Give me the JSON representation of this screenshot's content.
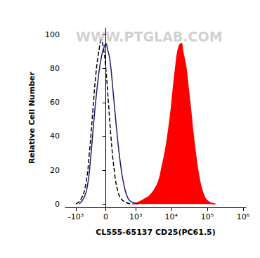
{
  "chart_data": {
    "type": "line",
    "x_label": "CL555-65137 CD25(PC61.5)",
    "y_label": "Relative Cell Number",
    "annotations": [
      "WWW.PTGLAB.COM"
    ],
    "xlim": [
      -2000,
      1200000
    ],
    "xticks": [
      {
        "value": -1000,
        "label": "-10³"
      },
      0,
      {
        "value": 1000,
        "label": "10³"
      },
      {
        "value": 10000,
        "label": "10⁴"
      },
      {
        "value": 100000,
        "label": "10⁵"
      },
      {
        "value": 1000000,
        "label": "10⁶"
      }
    ],
    "ylim": [
      -2,
      104
    ],
    "yticks": [
      0,
      20,
      40,
      60,
      80,
      100
    ],
    "grid": false,
    "series": [
      {
        "type": "line",
        "color": "#000000",
        "line_style": "dashed",
        "x": [
          -1000,
          -700,
          -500,
          -380,
          -280,
          -200,
          -130,
          -90,
          -50,
          0,
          50,
          100,
          170,
          250,
          350,
          500,
          700
        ],
        "values": [
          0,
          3,
          12,
          30,
          55,
          78,
          92,
          97,
          93,
          80,
          60,
          40,
          20,
          8,
          3,
          1,
          0
        ]
      },
      {
        "type": "line",
        "color": "#1a1a6e",
        "line_style": "solid",
        "x": [
          -800,
          -600,
          -450,
          -350,
          -250,
          -150,
          -80,
          -30,
          0,
          30,
          80,
          150,
          250,
          350,
          450,
          600,
          800,
          1200
        ],
        "values": [
          0,
          3,
          10,
          25,
          50,
          75,
          88,
          93,
          95,
          92,
          85,
          65,
          38,
          20,
          10,
          3,
          1,
          0
        ]
      },
      {
        "type": "area",
        "color": "#ff0000",
        "line_style": "solid",
        "x": [
          800,
          1200,
          1800,
          2500,
          3500,
          4500,
          5500,
          7000,
          8500,
          10000,
          11500,
          13000,
          15000,
          17000,
          19000,
          21000,
          23000,
          26000,
          30000,
          35000,
          40000,
          48000,
          58000,
          70000,
          85000,
          100000,
          130000,
          170000
        ],
        "values": [
          0,
          1,
          3,
          5,
          9,
          14,
          22,
          33,
          45,
          57,
          70,
          80,
          90,
          94,
          95,
          90,
          86,
          80,
          68,
          55,
          43,
          29,
          17,
          9,
          4,
          2,
          0.5,
          0
        ]
      }
    ]
  }
}
